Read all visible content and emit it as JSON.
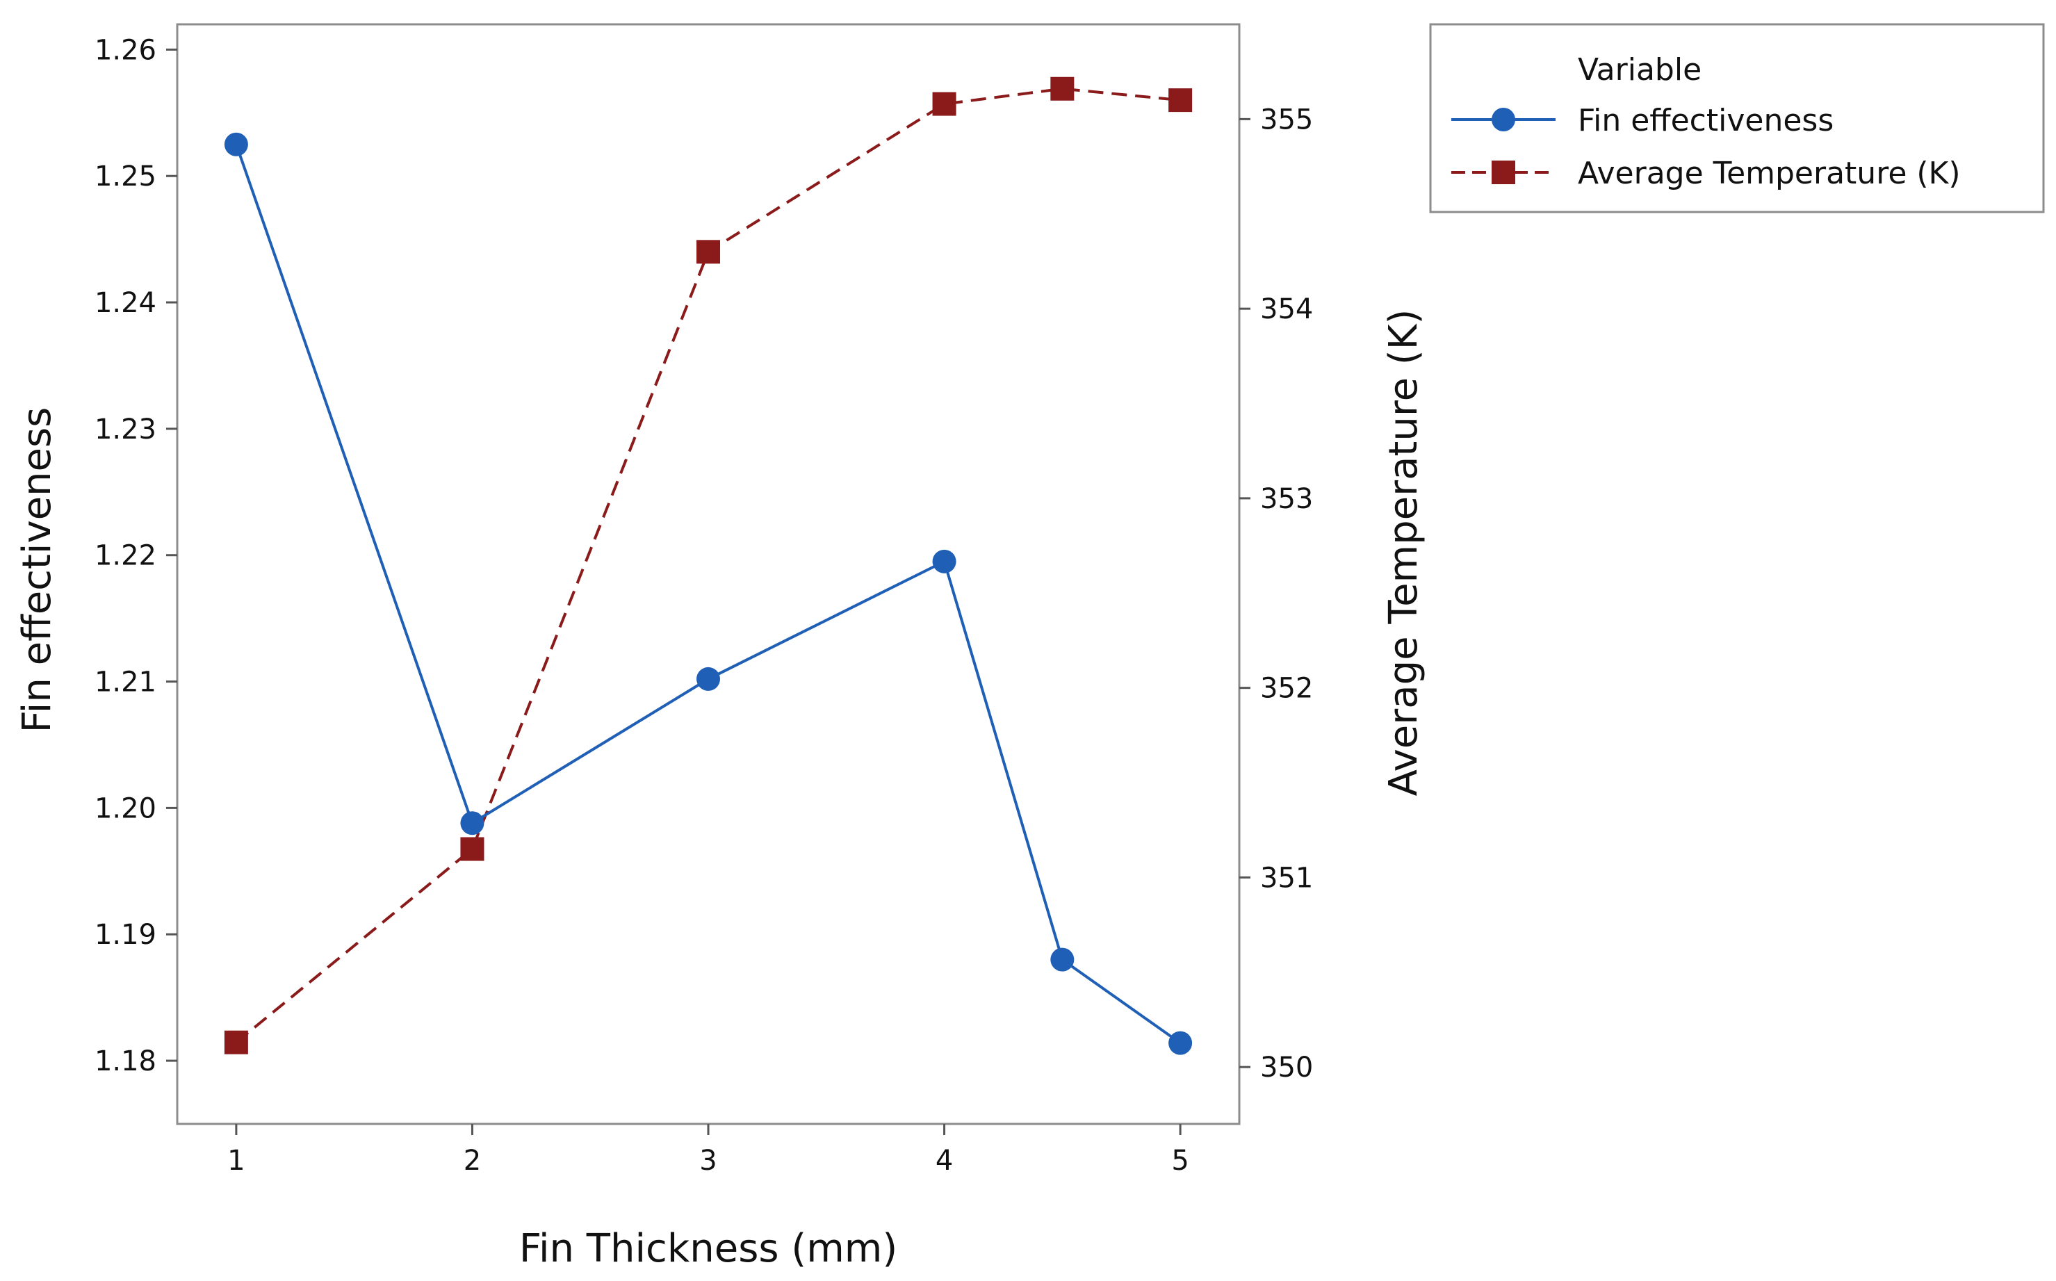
{
  "chart_data": {
    "type": "line",
    "title": "",
    "xlabel": "Fin Thickness (mm)",
    "ylabel": "Fin effectiveness",
    "y2label": "Average Temperature (K)",
    "xlim": [
      0.75,
      5.25
    ],
    "ylim": [
      1.175,
      1.262
    ],
    "y2lim": [
      349.7,
      355.5
    ],
    "x_ticks": [
      1,
      2,
      3,
      4,
      5
    ],
    "y_ticks": [
      1.18,
      1.19,
      1.2,
      1.21,
      1.22,
      1.23,
      1.24,
      1.25,
      1.26
    ],
    "y_tick_labels": [
      "1.18",
      "1.19",
      "1.20",
      "1.21",
      "1.22",
      "1.23",
      "1.24",
      "1.25",
      "1.26"
    ],
    "y2_ticks": [
      350,
      351,
      352,
      353,
      354,
      355
    ],
    "y2_tick_labels": [
      "350",
      "351",
      "352",
      "353",
      "354",
      "355"
    ],
    "series": [
      {
        "name": "Fin effectiveness",
        "axis": "left",
        "color": "#1f5fb5",
        "marker": "circle",
        "line_style": "solid",
        "x": [
          1,
          2,
          3,
          4,
          4.5,
          5
        ],
        "values": [
          1.2525,
          1.1988,
          1.2102,
          1.2195,
          1.188,
          1.1814
        ]
      },
      {
        "name": "Average Temperature (K)",
        "axis": "right",
        "color": "#8b1a1a",
        "marker": "square",
        "line_style": "dashed",
        "x": [
          1,
          2,
          3,
          4,
          4.5,
          5
        ],
        "values": [
          350.13,
          351.15,
          354.3,
          355.08,
          355.16,
          355.1
        ]
      }
    ],
    "legend": {
      "title": "Variable",
      "position": "top-right outside"
    }
  }
}
